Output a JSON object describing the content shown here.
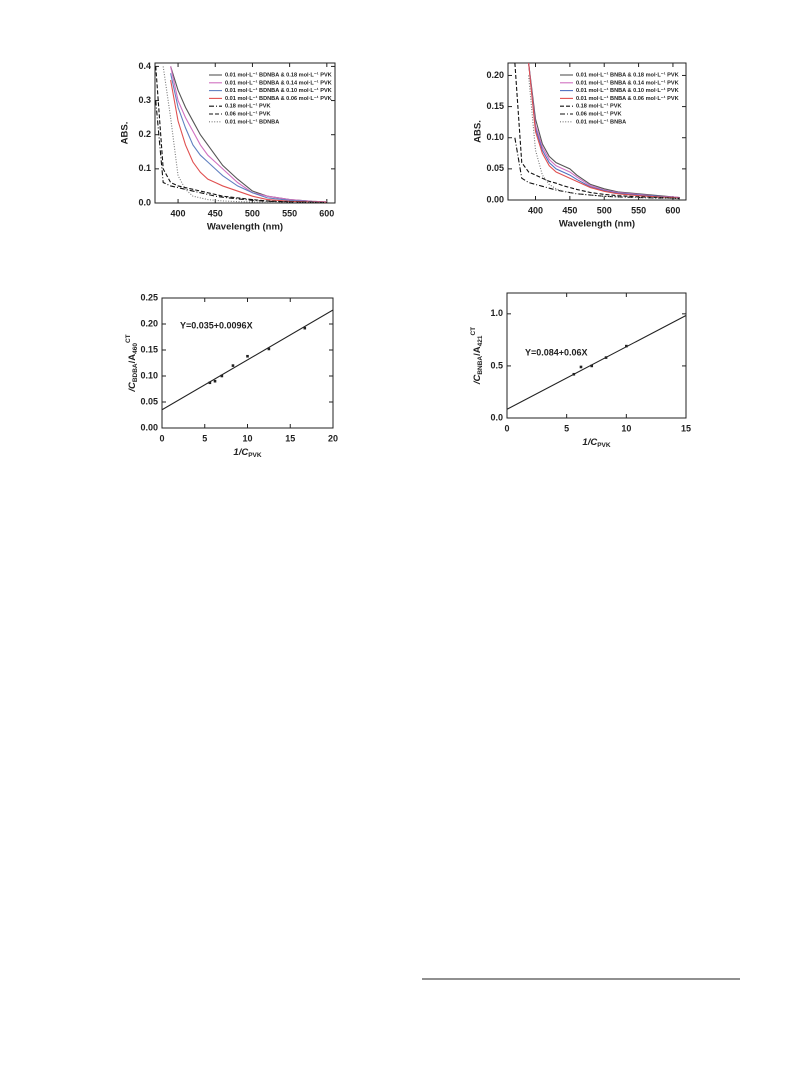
{
  "chart_data": [
    {
      "type": "line",
      "xlabel": "Wavelength (nm)",
      "ylabel": "ABS.",
      "xlim": [
        369,
        611
      ],
      "ylim": [
        0,
        0.41
      ],
      "xticks": [
        400,
        450,
        500,
        550,
        600
      ],
      "yticks": [
        {
          "value": 0,
          "label": "0.0"
        },
        0.1,
        0.2,
        0.3,
        0.4
      ],
      "legend": "upper right",
      "x": [
        370,
        380,
        390,
        400,
        410,
        420,
        430,
        440,
        450,
        460,
        480,
        500,
        520,
        550,
        580,
        600
      ],
      "series": [
        {
          "name": "0.01 mol·L⁻¹ BDNBA & 0.18 mol·L⁻¹ PVK",
          "color": "#555555",
          "dash": "solid",
          "values": [
            null,
            null,
            0.4,
            0.33,
            0.28,
            0.24,
            0.2,
            0.17,
            0.14,
            0.11,
            0.07,
            0.035,
            0.02,
            0.01,
            0.005,
            0.003
          ]
        },
        {
          "name": "0.01 mol·L⁻¹ BDNBA & 0.14 mol·L⁻¹ PVK",
          "color": "#d070c0",
          "dash": "solid",
          "values": [
            null,
            null,
            0.4,
            0.3,
            0.25,
            0.21,
            0.17,
            0.14,
            0.12,
            0.1,
            0.06,
            0.03,
            0.02,
            0.01,
            0.005,
            0.003
          ]
        },
        {
          "name": "0.01 mol·L⁻¹ BDNBA & 0.10 mol·L⁻¹ PVK",
          "color": "#6080c0",
          "dash": "solid",
          "values": [
            null,
            null,
            0.38,
            0.28,
            0.22,
            0.17,
            0.14,
            0.12,
            0.1,
            0.08,
            0.05,
            0.03,
            0.015,
            0.008,
            0.004,
            0.002
          ]
        },
        {
          "name": "0.01 mol·L⁻¹ BDNBA & 0.06 mol·L⁻¹ PVK",
          "color": "#e05050",
          "dash": "solid",
          "values": [
            null,
            null,
            0.36,
            0.24,
            0.17,
            0.12,
            0.09,
            0.07,
            0.06,
            0.05,
            0.035,
            0.02,
            0.01,
            0.005,
            0.003,
            0.002
          ]
        },
        {
          "name": "0.18 mol·L⁻¹ PVK",
          "color": "#111111",
          "dash": "dashdot",
          "values": [
            0.3,
            0.06,
            0.05,
            0.045,
            0.04,
            0.035,
            0.03,
            0.025,
            0.02,
            0.017,
            0.012,
            0.008,
            0.005,
            0.003,
            0.002,
            0.001
          ]
        },
        {
          "name": "0.06 mol·L⁻¹ PVK",
          "color": "#111111",
          "dash": "dash",
          "values": [
            0.4,
            0.1,
            0.06,
            0.05,
            0.045,
            0.04,
            0.035,
            0.03,
            0.025,
            0.02,
            0.015,
            0.01,
            0.006,
            0.003,
            0.002,
            0.001
          ]
        },
        {
          "name": "0.01 mol·L⁻¹ BDNBA",
          "color": "#777777",
          "dash": "dot",
          "values": [
            null,
            0.4,
            0.25,
            0.08,
            0.04,
            0.02,
            0.015,
            0.01,
            0.008,
            0.006,
            0.004,
            0.003,
            0.002,
            0.001,
            0.001,
            0
          ]
        }
      ]
    },
    {
      "type": "line",
      "xlabel": "Wavelength (nm)",
      "ylabel": "ABS.",
      "xlim": [
        360,
        619
      ],
      "ylim": [
        0,
        0.22
      ],
      "xticks": [
        400,
        450,
        500,
        550,
        600
      ],
      "yticks": [
        {
          "value": 0,
          "label": "0.00"
        },
        0.05,
        {
          "value": 0.1,
          "label": "0.10"
        },
        0.15,
        {
          "value": 0.2,
          "label": "0.20"
        }
      ],
      "legend": "upper right",
      "x": [
        370,
        380,
        390,
        400,
        410,
        420,
        430,
        440,
        450,
        460,
        480,
        500,
        520,
        550,
        580,
        600,
        610
      ],
      "series": [
        {
          "name": "0.01 mol·L⁻¹ BNBA & 0.18 mol·L⁻¹ PVK",
          "color": "#555555",
          "dash": "solid",
          "values": [
            null,
            null,
            0.22,
            0.13,
            0.09,
            0.07,
            0.06,
            0.055,
            0.05,
            0.04,
            0.025,
            0.018,
            0.013,
            0.01,
            0.007,
            0.005,
            0.004
          ]
        },
        {
          "name": "0.01 mol·L⁻¹ BNBA & 0.14 mol·L⁻¹ PVK",
          "color": "#d070c0",
          "dash": "solid",
          "values": [
            null,
            null,
            0.22,
            0.12,
            0.085,
            0.065,
            0.055,
            0.05,
            0.045,
            0.037,
            0.023,
            0.016,
            0.012,
            0.009,
            0.006,
            0.005,
            0.004
          ]
        },
        {
          "name": "0.01 mol·L⁻¹ BNBA & 0.10 mol·L⁻¹ PVK",
          "color": "#5070c0",
          "dash": "solid",
          "values": [
            null,
            null,
            0.22,
            0.115,
            0.08,
            0.06,
            0.05,
            0.045,
            0.04,
            0.033,
            0.021,
            0.015,
            0.011,
            0.008,
            0.006,
            0.004,
            0.003
          ]
        },
        {
          "name": "0.01 mol·L⁻¹ BNBA & 0.06 mol·L⁻¹ PVK",
          "color": "#e05050",
          "dash": "solid",
          "values": [
            null,
            null,
            0.22,
            0.11,
            0.075,
            0.055,
            0.045,
            0.04,
            0.035,
            0.03,
            0.02,
            0.014,
            0.01,
            0.007,
            0.005,
            0.004,
            0.003
          ]
        },
        {
          "name": "0.18 mol·L⁻¹ PVK",
          "color": "#111111",
          "dash": "dash",
          "values": [
            0.22,
            0.06,
            0.045,
            0.04,
            0.035,
            0.03,
            0.027,
            0.023,
            0.02,
            0.017,
            0.012,
            0.009,
            0.007,
            0.005,
            0.004,
            0.003,
            0.003
          ]
        },
        {
          "name": "0.06 mol·L⁻¹ PVK",
          "color": "#111111",
          "dash": "dashdot",
          "values": [
            0.1,
            0.035,
            0.028,
            0.025,
            0.022,
            0.019,
            0.016,
            0.014,
            0.012,
            0.01,
            0.008,
            0.006,
            0.005,
            0.004,
            0.003,
            0.003,
            0.002
          ]
        },
        {
          "name": "0.01 mol·L⁻¹ BNBA",
          "color": "#777777",
          "dash": "dot",
          "values": [
            null,
            null,
            0.2,
            0.08,
            0.04,
            0.025,
            0.018,
            0.014,
            0.012,
            0.01,
            0.008,
            0.006,
            0.005,
            0.004,
            0.003,
            0.003,
            0.002
          ]
        }
      ]
    },
    {
      "type": "scatter",
      "xlabel": [
        "1/C",
        "PVK"
      ],
      "xlabel_scripts": [
        "normal",
        "sub"
      ],
      "ylabel": [
        "/C",
        "BDBA",
        "/A",
        "460",
        "CT"
      ],
      "ylabel_scripts": [
        "normal",
        "sub",
        "normal",
        "sub",
        "super"
      ],
      "annotation": "Y=0.035+0.0096X",
      "xlim": [
        0,
        20
      ],
      "ylim": [
        0,
        0.25
      ],
      "xticks": [
        0,
        5,
        10,
        15,
        20
      ],
      "yticks": [
        {
          "value": 0,
          "label": "0.00"
        },
        0.05,
        {
          "value": 0.1,
          "label": "0.10"
        },
        0.15,
        {
          "value": 0.2,
          "label": "0.20"
        },
        0.25
      ],
      "x": [
        5.6,
        6.2,
        7.0,
        8.3,
        10.0,
        12.5,
        16.7
      ],
      "values": [
        0.087,
        0.09,
        0.1,
        0.12,
        0.138,
        0.152,
        0.192
      ],
      "color": "#222222",
      "fit_line": {
        "x": [
          0,
          20
        ],
        "y": [
          0.035,
          0.227
        ]
      }
    },
    {
      "type": "scatter",
      "xlabel": [
        "1/C",
        "PVK"
      ],
      "xlabel_scripts": [
        "normal",
        "sub"
      ],
      "ylabel": [
        "/C",
        "BNBA",
        "/A",
        "421",
        "CT"
      ],
      "ylabel_scripts": [
        "normal",
        "sub",
        "normal",
        "sub",
        "super"
      ],
      "annotation": "Y=0.084+0.06X",
      "xlim": [
        0,
        15
      ],
      "ylim": [
        0,
        1.2
      ],
      "xticks": [
        0,
        5,
        10,
        15
      ],
      "yticks": [
        {
          "value": 0,
          "label": "0.0"
        },
        0.5,
        {
          "value": 1,
          "label": "1.0"
        }
      ],
      "x": [
        5.6,
        6.2,
        7.1,
        8.3,
        10.0
      ],
      "values": [
        0.42,
        0.49,
        0.5,
        0.58,
        0.69
      ],
      "color": "#222222",
      "fit_line": {
        "x": [
          0,
          15
        ],
        "y": [
          0.084,
          0.984
        ]
      }
    }
  ]
}
